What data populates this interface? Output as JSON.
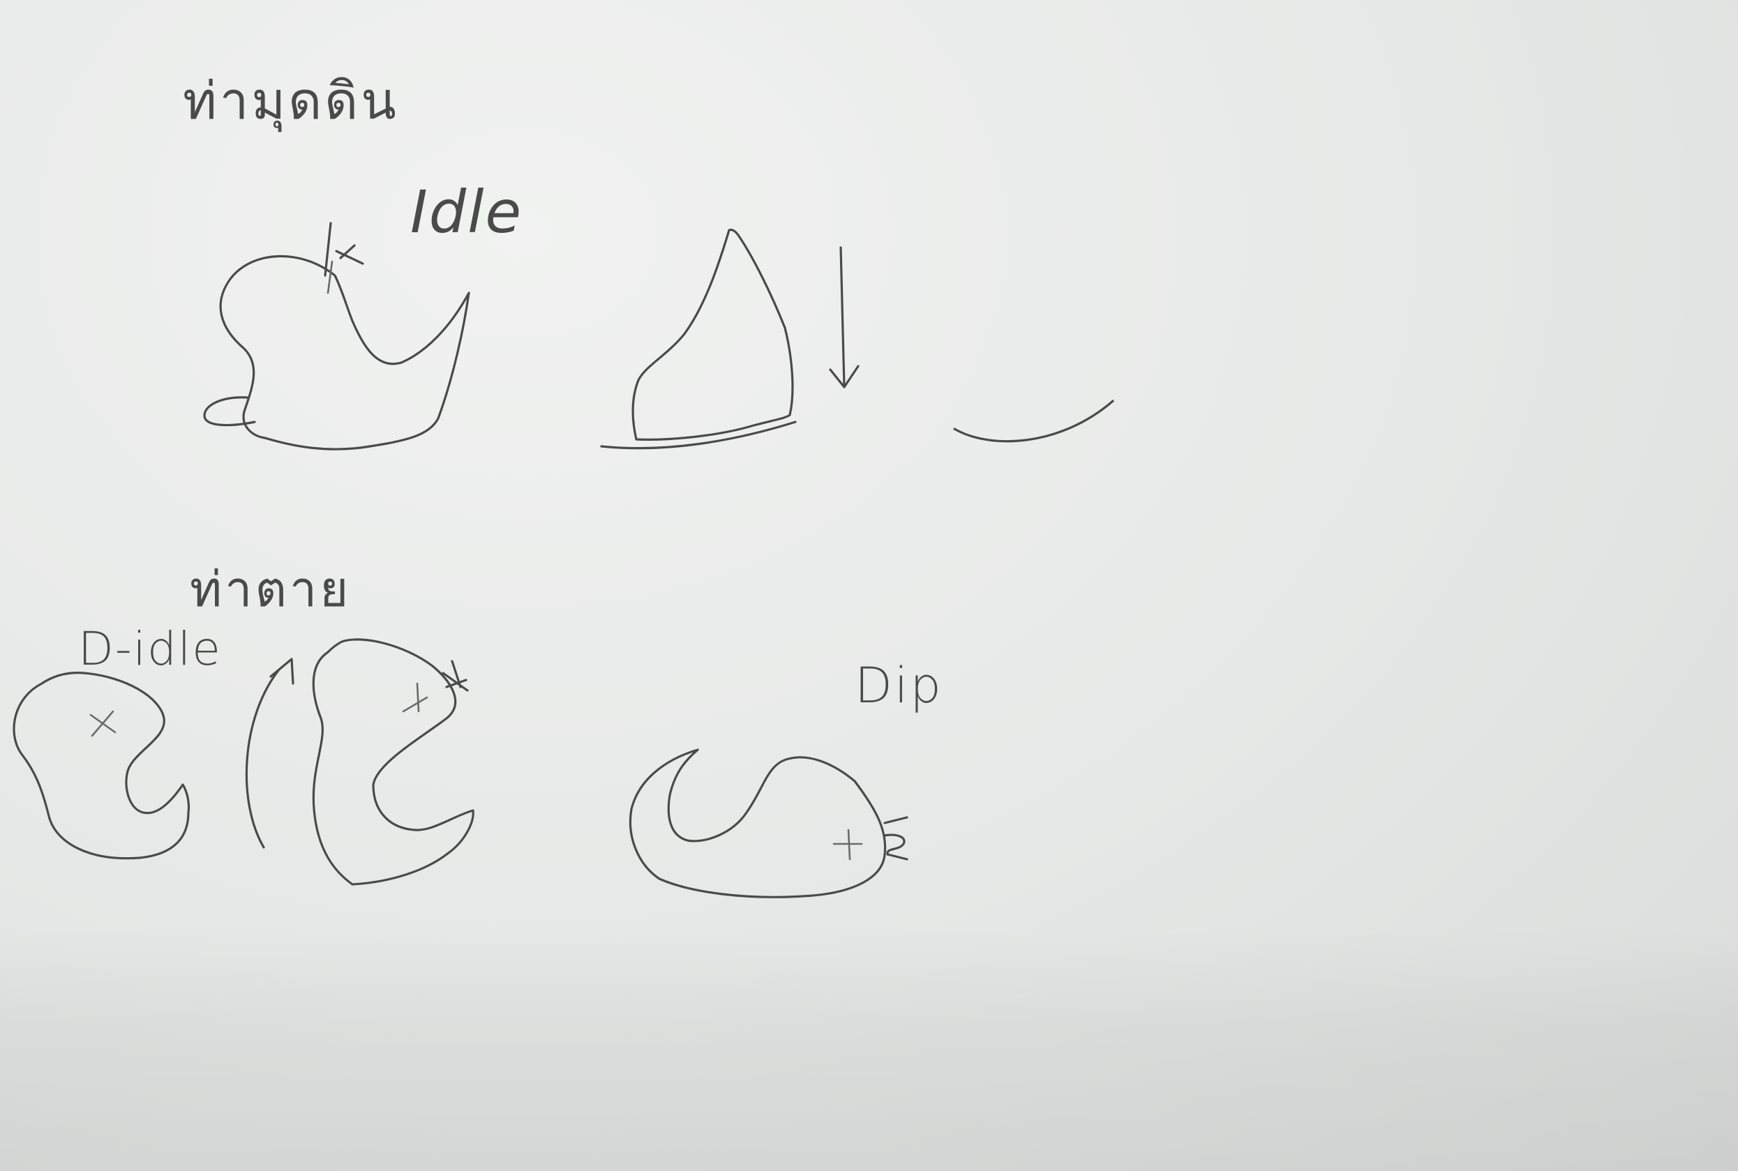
{
  "labels": {
    "pose_standing": "ท่ามุดดิน",
    "idle": "Idle",
    "pose_dying": "ท่าตาย",
    "d_idle": "D-idle",
    "dip": "Dip"
  },
  "colors": {
    "paper": "#e9ebea",
    "pencil": "#4a4a4a"
  }
}
